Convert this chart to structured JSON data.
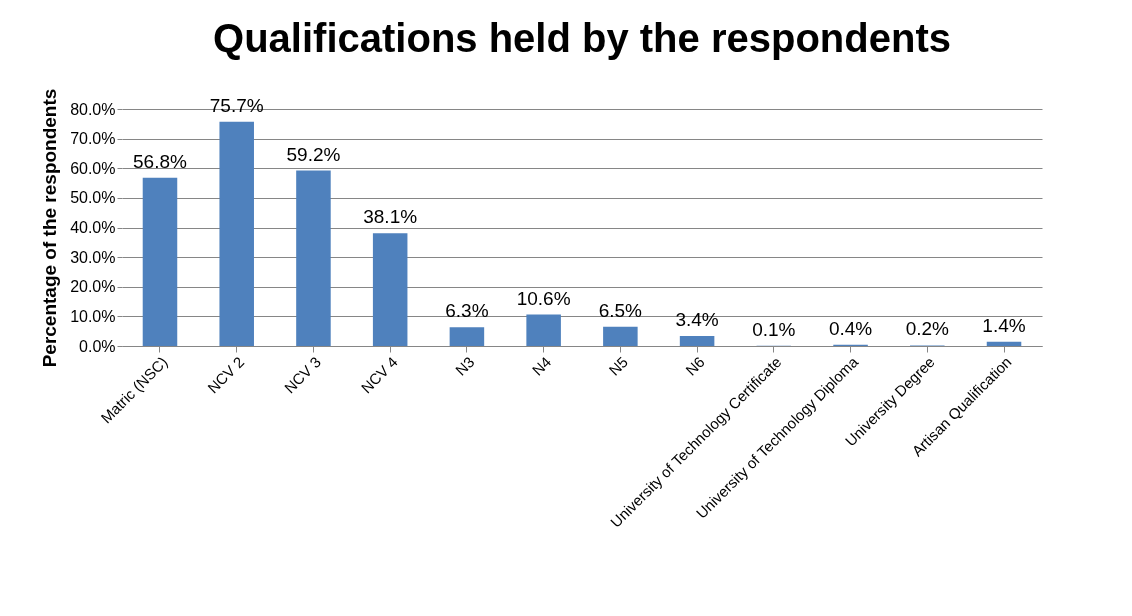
{
  "chart_data": {
    "type": "bar",
    "title": "Qualifications held by the respondents",
    "ylabel": "Percentage of the respondents",
    "categories": [
      "Matric (NSC)",
      "NCV 2",
      "NCV 3",
      "NCV 4",
      "N3",
      "N4",
      "N5",
      "N6",
      "University of Technology Certificate",
      "University of Technology Diploma",
      "University Degree",
      "Artisan Qualification"
    ],
    "values": [
      56.8,
      75.7,
      59.2,
      38.1,
      6.3,
      10.6,
      6.5,
      3.4,
      0.1,
      0.4,
      0.2,
      1.4
    ],
    "value_labels": [
      "56.8%",
      "75.7%",
      "59.2%",
      "38.1%",
      "6.3%",
      "10.6%",
      "6.5%",
      "3.4%",
      "0.1%",
      "0.4%",
      "0.2%",
      "1.4%"
    ],
    "color": "#4f81bd",
    "ylim": [
      0,
      80
    ],
    "yticks": [
      {
        "value": 0,
        "label": "0.0%"
      },
      {
        "value": 10,
        "label": "10.0%"
      },
      {
        "value": 20,
        "label": "20.0%"
      },
      {
        "value": 30,
        "label": "30.0%"
      },
      {
        "value": 40,
        "label": "40.0%"
      },
      {
        "value": 50,
        "label": "50.0%"
      },
      {
        "value": 60,
        "label": "60.0%"
      },
      {
        "value": 70,
        "label": "70.0%"
      },
      {
        "value": 80,
        "label": "80.0%"
      }
    ],
    "grid": true
  }
}
